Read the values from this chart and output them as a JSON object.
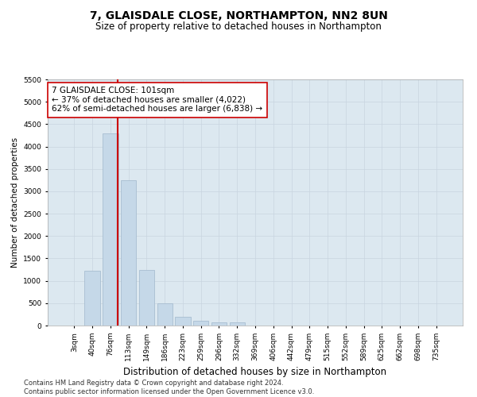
{
  "title": "7, GLAISDALE CLOSE, NORTHAMPTON, NN2 8UN",
  "subtitle": "Size of property relative to detached houses in Northampton",
  "xlabel": "Distribution of detached houses by size in Northampton",
  "ylabel": "Number of detached properties",
  "categories": [
    "3sqm",
    "40sqm",
    "76sqm",
    "113sqm",
    "149sqm",
    "186sqm",
    "223sqm",
    "259sqm",
    "296sqm",
    "332sqm",
    "369sqm",
    "406sqm",
    "442sqm",
    "479sqm",
    "515sqm",
    "552sqm",
    "589sqm",
    "625sqm",
    "662sqm",
    "698sqm",
    "735sqm"
  ],
  "values": [
    0,
    1220,
    4300,
    3250,
    1250,
    500,
    200,
    100,
    75,
    75,
    0,
    0,
    0,
    0,
    0,
    0,
    0,
    0,
    0,
    0,
    0
  ],
  "bar_color": "#c5d8e8",
  "bar_edge_color": "#a0b8cc",
  "vline_color": "#cc0000",
  "ylim": [
    0,
    5500
  ],
  "yticks": [
    0,
    500,
    1000,
    1500,
    2000,
    2500,
    3000,
    3500,
    4000,
    4500,
    5000,
    5500
  ],
  "annotation_text": "7 GLAISDALE CLOSE: 101sqm\n← 37% of detached houses are smaller (4,022)\n62% of semi-detached houses are larger (6,838) →",
  "annotation_box_color": "#ffffff",
  "annotation_box_edge": "#cc0000",
  "footnote": "Contains HM Land Registry data © Crown copyright and database right 2024.\nContains public sector information licensed under the Open Government Licence v3.0.",
  "background_color": "#ffffff",
  "grid_color": "#c8d4e0",
  "axes_bg_color": "#dce8f0",
  "title_fontsize": 10,
  "subtitle_fontsize": 8.5,
  "xlabel_fontsize": 8.5,
  "ylabel_fontsize": 7.5,
  "footnote_fontsize": 6.0,
  "tick_fontsize": 6.5,
  "annot_fontsize": 7.5
}
